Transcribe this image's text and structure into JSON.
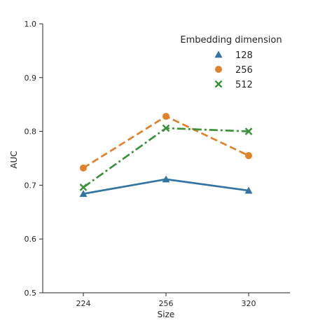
{
  "chart_data": {
    "type": "line",
    "xlabel": "Size",
    "ylabel": "AUC",
    "categories": [
      "224",
      "256",
      "320"
    ],
    "ylim": [
      0.5,
      1.0
    ],
    "yticks": [
      "0.5",
      "0.6",
      "0.7",
      "0.8",
      "0.9",
      "1.0"
    ],
    "grid": false,
    "legend": {
      "title": "Embedding dimension",
      "placement": "top-right"
    },
    "series": [
      {
        "name": "128",
        "values": [
          0.684,
          0.711,
          0.69
        ],
        "color": "#3274a1",
        "marker": "triangle",
        "dash": "solid"
      },
      {
        "name": "256",
        "values": [
          0.732,
          0.828,
          0.755
        ],
        "color": "#e1812c",
        "marker": "circle",
        "dash": "dashed"
      },
      {
        "name": "512",
        "values": [
          0.696,
          0.806,
          0.8
        ],
        "color": "#3a923a",
        "marker": "x",
        "dash": "dashdot"
      }
    ]
  }
}
